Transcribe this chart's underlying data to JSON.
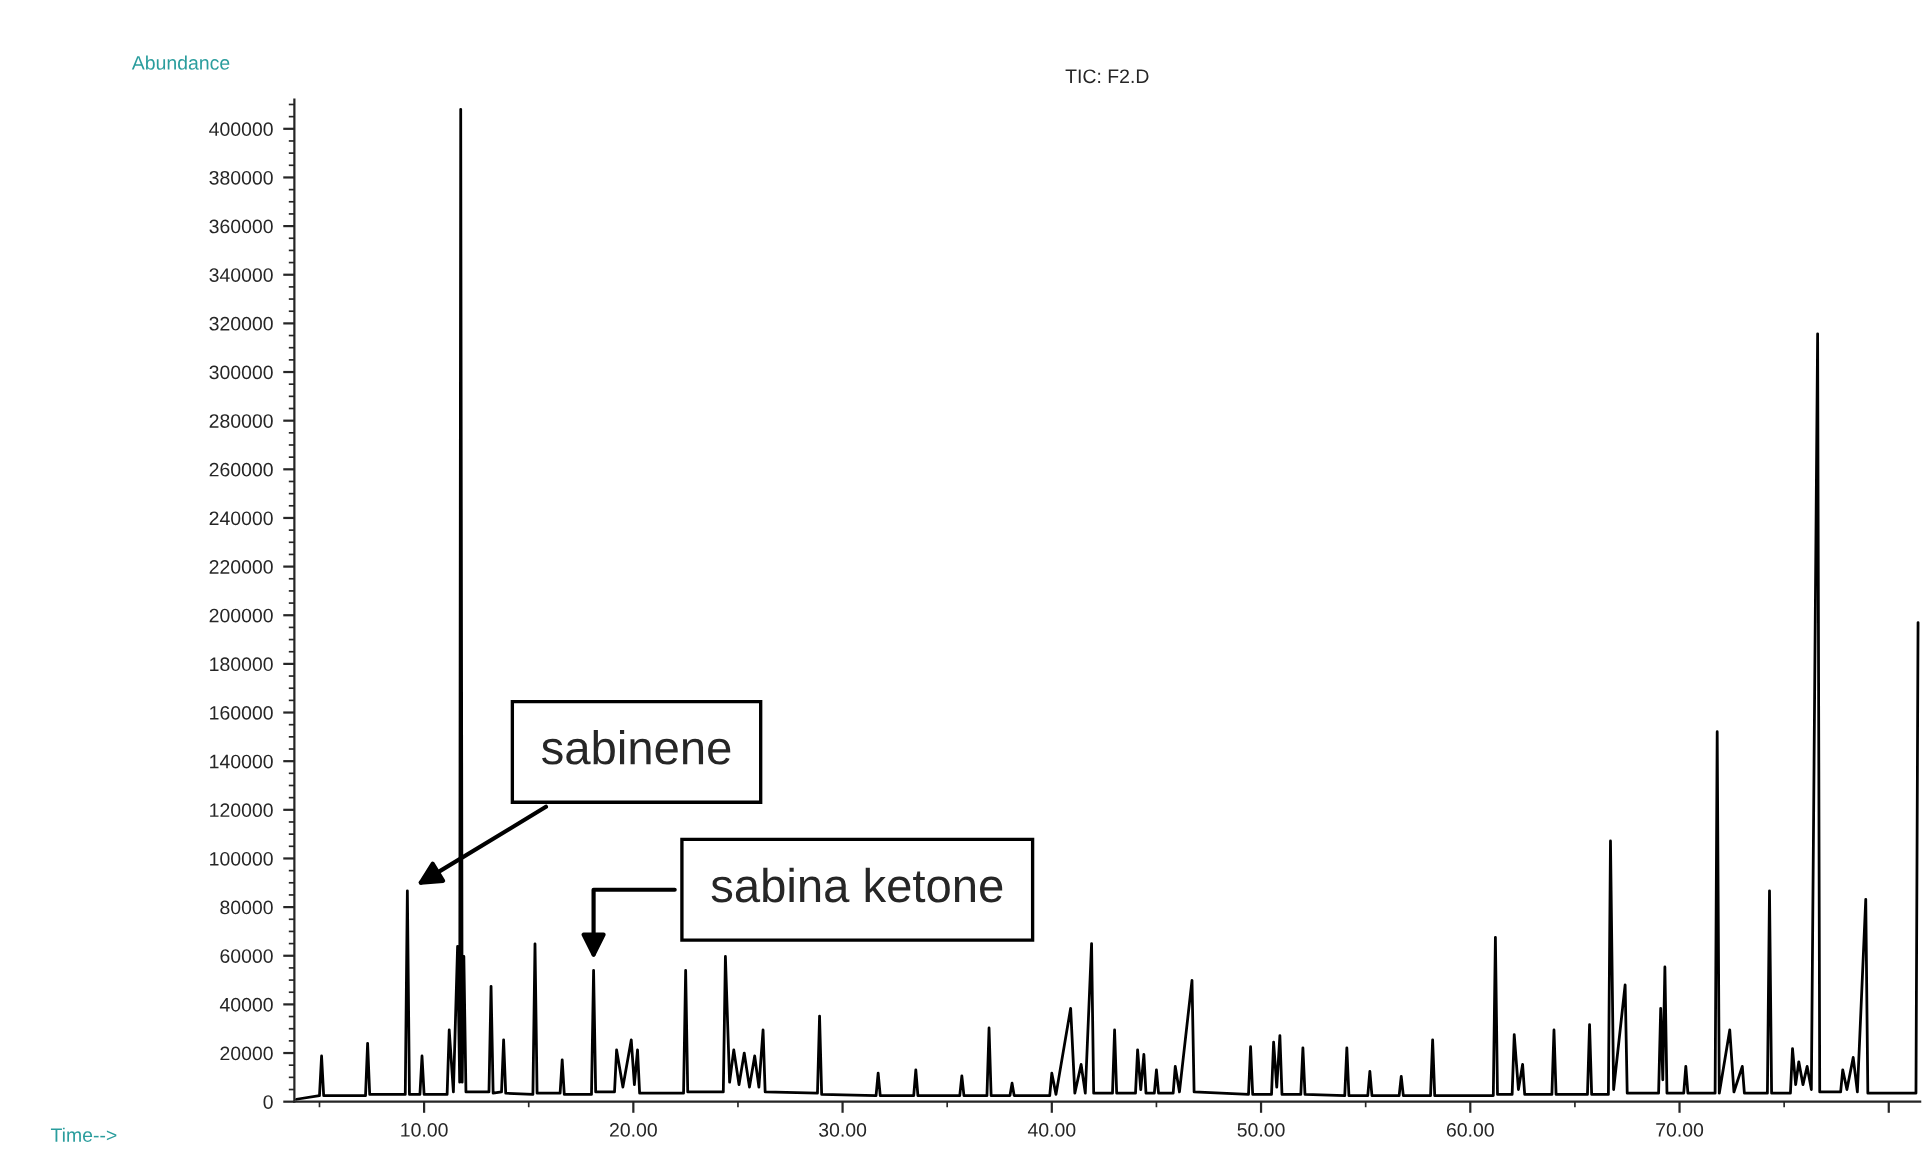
{
  "chart_data": {
    "type": "line",
    "title": "TIC: F2.D",
    "xlabel": "Time-->",
    "ylabel": "Abundance",
    "xlim": [
      3.8,
      81.5
    ],
    "ylim": [
      0,
      412000
    ],
    "xticks": [
      {
        "value": 10,
        "label": "10.00"
      },
      {
        "value": 20,
        "label": "20.00"
      },
      {
        "value": 30,
        "label": "30.00"
      },
      {
        "value": 40,
        "label": "40.00"
      },
      {
        "value": 50,
        "label": "50.00"
      },
      {
        "value": 60,
        "label": "60.00"
      },
      {
        "value": 70,
        "label": "70.00"
      },
      {
        "value": 80,
        "label": null
      }
    ],
    "yticks": [
      0,
      20000,
      40000,
      60000,
      80000,
      100000,
      120000,
      140000,
      160000,
      180000,
      200000,
      220000,
      240000,
      260000,
      280000,
      300000,
      320000,
      340000,
      360000,
      380000,
      400000
    ],
    "grid": false,
    "legend": false,
    "marker": "none",
    "line_style": "solid",
    "series": [
      {
        "color": "#000000",
        "x": [
          3.9,
          5.0,
          5.1,
          5.2,
          7.2,
          7.3,
          7.4,
          9.1,
          9.2,
          9.3,
          9.8,
          9.9,
          10.0,
          11.1,
          11.2,
          11.4,
          11.6,
          11.7,
          11.75,
          11.82,
          11.9,
          12.0,
          13.1,
          13.2,
          13.3,
          13.7,
          13.8,
          13.9,
          15.2,
          15.3,
          15.4,
          16.5,
          16.6,
          16.7,
          18.0,
          18.1,
          18.2,
          19.1,
          19.2,
          19.5,
          19.9,
          20.05,
          20.2,
          20.3,
          22.4,
          22.5,
          22.6,
          24.3,
          24.4,
          24.6,
          24.8,
          25.05,
          25.3,
          25.55,
          25.8,
          26.0,
          26.2,
          26.3,
          28.8,
          28.9,
          29.0,
          31.6,
          31.7,
          31.8,
          33.4,
          33.5,
          33.6,
          35.6,
          35.7,
          35.8,
          36.9,
          37.0,
          37.1,
          38.0,
          38.1,
          38.2,
          39.9,
          40.0,
          40.2,
          40.9,
          41.1,
          41.4,
          41.6,
          41.9,
          42.0,
          42.9,
          43.0,
          43.1,
          44.0,
          44.1,
          44.25,
          44.4,
          44.5,
          44.9,
          45.0,
          45.1,
          45.8,
          45.9,
          46.1,
          46.7,
          46.8,
          49.4,
          49.5,
          49.6,
          50.5,
          50.6,
          50.75,
          50.9,
          51.0,
          51.9,
          52.0,
          52.1,
          54.0,
          54.1,
          54.2,
          55.1,
          55.2,
          55.3,
          56.6,
          56.7,
          56.8,
          58.1,
          58.2,
          58.3,
          61.1,
          61.2,
          61.3,
          62.0,
          62.1,
          62.3,
          62.5,
          62.6,
          63.9,
          64.0,
          64.1,
          65.6,
          65.7,
          65.8,
          66.6,
          66.7,
          66.85,
          67.4,
          67.5,
          69.0,
          69.1,
          69.2,
          69.3,
          69.4,
          70.2,
          70.3,
          70.4,
          71.7,
          71.8,
          71.9,
          72.4,
          72.6,
          73.0,
          73.1,
          74.2,
          74.3,
          74.4,
          75.3,
          75.4,
          75.55,
          75.7,
          75.9,
          76.1,
          76.3,
          76.6,
          76.7,
          77.7,
          77.8,
          78.0,
          78.3,
          78.5,
          78.9,
          79.0,
          81.3,
          81.4
        ],
        "values": [
          1000,
          2500,
          18800,
          2500,
          2500,
          24000,
          3000,
          3000,
          86700,
          3000,
          3000,
          18800,
          3000,
          3000,
          29500,
          4000,
          63800,
          8000,
          408000,
          8000,
          59700,
          4000,
          4000,
          47400,
          3500,
          4000,
          25400,
          3500,
          3000,
          64900,
          3500,
          3500,
          17200,
          3000,
          3000,
          54000,
          4000,
          4000,
          21300,
          6000,
          25400,
          7000,
          21300,
          3500,
          3500,
          54000,
          4000,
          4000,
          59700,
          8000,
          21300,
          7000,
          20000,
          6000,
          18800,
          6000,
          29500,
          4000,
          3500,
          35200,
          3000,
          2500,
          11700,
          2500,
          2500,
          13100,
          2500,
          2500,
          10600,
          2500,
          2500,
          30300,
          2500,
          2500,
          7600,
          2500,
          2500,
          11700,
          3000,
          38400,
          3500,
          15300,
          3500,
          65000,
          3500,
          3500,
          29500,
          3500,
          3500,
          21300,
          5000,
          19400,
          3500,
          3500,
          13100,
          3500,
          3500,
          14500,
          4000,
          49900,
          4000,
          3000,
          22600,
          3000,
          3000,
          24500,
          6000,
          27200,
          3000,
          3000,
          22100,
          3000,
          2500,
          22100,
          2500,
          2500,
          12500,
          2500,
          2500,
          10400,
          2500,
          2500,
          25400,
          2500,
          2500,
          67600,
          3000,
          3000,
          27600,
          5000,
          15300,
          3000,
          3000,
          29500,
          3000,
          3000,
          31700,
          3000,
          3000,
          107200,
          5000,
          48000,
          3500,
          3500,
          38400,
          9000,
          55400,
          3500,
          3500,
          14500,
          3500,
          3500,
          152100,
          3500,
          29500,
          4000,
          14500,
          3500,
          3500,
          86700,
          3500,
          3500,
          21800,
          7000,
          16400,
          7000,
          14500,
          5000,
          315700,
          4000,
          4000,
          13100,
          5000,
          18200,
          4000,
          83200,
          3500,
          3500,
          197000
        ]
      }
    ],
    "annotations": [
      {
        "text": "sabinene",
        "x": 9.2,
        "y": 86700
      },
      {
        "text": "sabina ketone",
        "x": 18.1,
        "y": 54000
      }
    ]
  }
}
